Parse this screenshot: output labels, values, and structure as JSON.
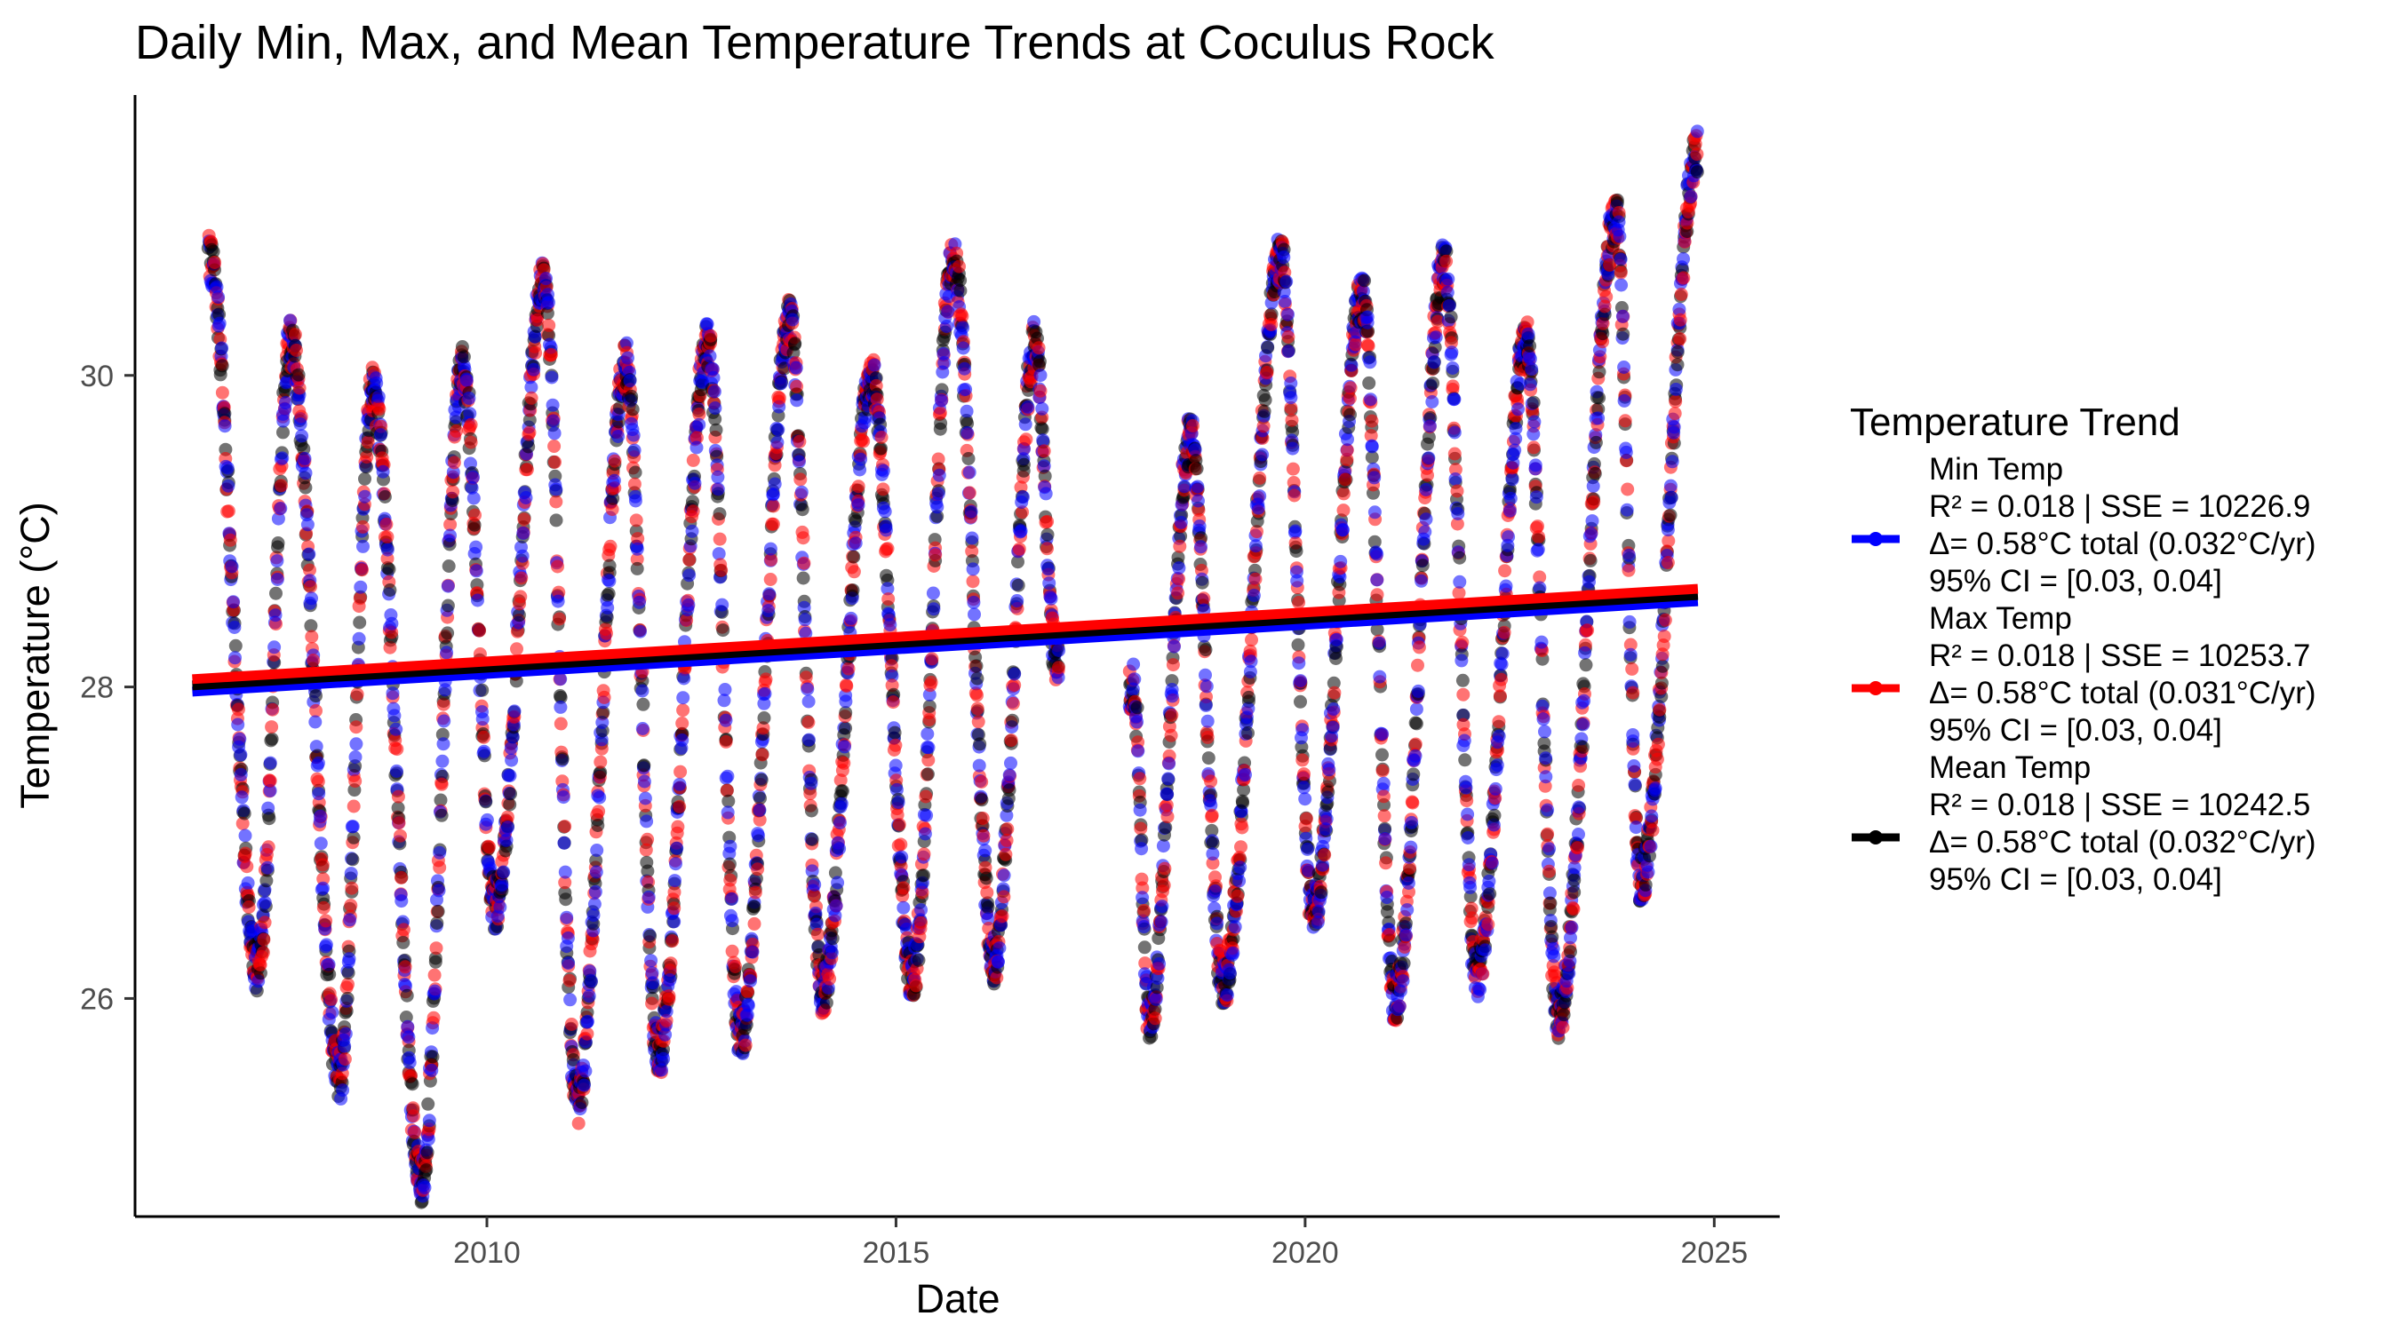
{
  "chart_data": {
    "type": "scatter",
    "title": "Daily Min, Max, and Mean Temperature Trends at Coculus Rock",
    "xlabel": "Date",
    "ylabel": "Temperature (°C)",
    "xlim": [
      2005.7,
      2025.8
    ],
    "ylim": [
      24.6,
      31.8
    ],
    "x_ticks": [
      2010,
      2015,
      2020,
      2025
    ],
    "y_ticks": [
      26,
      28,
      30
    ],
    "grid": false,
    "legend_position": "right",
    "legend_title": "Temperature Trend",
    "data_gap": [
      2017.0,
      2017.85
    ],
    "seasonal_extrema": [
      {
        "year": 2006.6,
        "t": 30.75
      },
      {
        "year": 2007.2,
        "t": 26.2
      },
      {
        "year": 2007.6,
        "t": 30.2
      },
      {
        "year": 2008.2,
        "t": 25.5
      },
      {
        "year": 2008.6,
        "t": 29.9
      },
      {
        "year": 2009.2,
        "t": 24.85
      },
      {
        "year": 2009.7,
        "t": 30.05
      },
      {
        "year": 2010.1,
        "t": 26.6
      },
      {
        "year": 2010.7,
        "t": 30.6
      },
      {
        "year": 2011.1,
        "t": 25.35
      },
      {
        "year": 2011.7,
        "t": 30.05
      },
      {
        "year": 2012.1,
        "t": 25.65
      },
      {
        "year": 2012.7,
        "t": 30.2
      },
      {
        "year": 2013.1,
        "t": 25.75
      },
      {
        "year": 2013.7,
        "t": 30.35
      },
      {
        "year": 2014.1,
        "t": 26.05
      },
      {
        "year": 2014.7,
        "t": 30.0
      },
      {
        "year": 2015.2,
        "t": 26.15
      },
      {
        "year": 2015.7,
        "t": 30.75
      },
      {
        "year": 2016.2,
        "t": 26.25
      },
      {
        "year": 2016.7,
        "t": 30.2
      },
      {
        "year": 2016.95,
        "t": 28.2
      },
      {
        "year": 2017.9,
        "t": 28.0
      },
      {
        "year": 2018.1,
        "t": 25.85
      },
      {
        "year": 2018.6,
        "t": 29.6
      },
      {
        "year": 2019.0,
        "t": 26.1
      },
      {
        "year": 2019.7,
        "t": 30.75
      },
      {
        "year": 2020.1,
        "t": 26.55
      },
      {
        "year": 2020.7,
        "t": 30.5
      },
      {
        "year": 2021.1,
        "t": 26.0
      },
      {
        "year": 2021.7,
        "t": 30.7
      },
      {
        "year": 2022.1,
        "t": 26.15
      },
      {
        "year": 2022.7,
        "t": 30.2
      },
      {
        "year": 2023.1,
        "t": 25.9
      },
      {
        "year": 2023.8,
        "t": 31.0
      },
      {
        "year": 2024.1,
        "t": 26.75
      },
      {
        "year": 2024.8,
        "t": 31.45
      }
    ],
    "series": [
      {
        "name": "Min Temp",
        "color": "#0000FF",
        "r2": "R² = 0.018 | SSE = 10226.9",
        "delta": "Δ= 0.58°C total (0.032°C/yr)",
        "ci": "95% CI = [0.03, 0.04]",
        "trend": {
          "x": [
            2006.4,
            2024.8
          ],
          "y": [
            27.97,
            28.55
          ]
        }
      },
      {
        "name": "Max Temp",
        "color": "#FF0000",
        "r2": "R² = 0.018 | SSE = 10253.7",
        "delta": "Δ= 0.58°C total (0.031°C/yr)",
        "ci": "95% CI = [0.03, 0.04]",
        "trend": {
          "x": [
            2006.4,
            2024.8
          ],
          "y": [
            28.05,
            28.63
          ]
        }
      },
      {
        "name": "Mean Temp",
        "color": "#000000",
        "r2": "R² = 0.018 | SSE = 10242.5",
        "delta": "Δ= 0.58°C total (0.032°C/yr)",
        "ci": "95% CI = [0.03, 0.04]",
        "trend": {
          "x": [
            2006.4,
            2024.8
          ],
          "y": [
            28.01,
            28.59
          ]
        }
      }
    ]
  }
}
